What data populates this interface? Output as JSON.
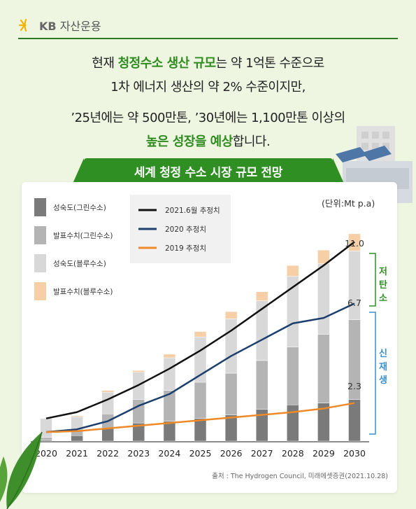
{
  "brand": {
    "logo_name": "KB",
    "logo_sub": "자산운용"
  },
  "headline": {
    "line1": {
      "pre": "현재 ",
      "hl": "청정수소 생산 규모",
      "post": "는 약 1억톤 수준으로"
    },
    "line2": "1차 에너지 생산의 약 2% 수준이지만,",
    "line3": "’25년에는 약 500만톤, ’30년에는 1,100만톤 이상의",
    "line4": {
      "hl": "높은 성장을 예상",
      "post": "합니다."
    }
  },
  "chart_title": "세계 청정 수소 시장 규모 전망",
  "unit_label": "(단위:Mt p.a)",
  "source": "출처 : The Hydrogen Council, 미래에셋증권(2021.10.28)",
  "side_labels": {
    "low_carbon": "저탄소",
    "renewable": "신재생"
  },
  "colors": {
    "mature_green": "#7a7a7a",
    "announced_green": "#b4b4b4",
    "mature_blue": "#d8d8d8",
    "announced_blue": "#f6cfa6",
    "line_2021": "#111111",
    "line_2020": "#1d3f6e",
    "line_2019": "#f08a28",
    "bracket": "#2f8f23",
    "bracket_blue": "#3a8fd0"
  },
  "chart_data": {
    "type": "bar",
    "categories": [
      "2020",
      "2021",
      "2022",
      "2023",
      "2024",
      "2025",
      "2026",
      "2027",
      "2028",
      "2029",
      "2030"
    ],
    "ylim": [
      0,
      11.6
    ],
    "series": [
      {
        "name": "성숙도(그린수소)",
        "kind": "stack",
        "color": "#7a7a7a",
        "values": [
          0.05,
          0.3,
          0.7,
          1.0,
          1.1,
          1.25,
          1.45,
          1.75,
          2.0,
          2.1,
          2.3
        ]
      },
      {
        "name": "발표수치(그린수소)",
        "kind": "stack",
        "color": "#b4b4b4",
        "values": [
          0.15,
          0.3,
          0.8,
          1.3,
          1.7,
          2.0,
          2.3,
          2.7,
          3.2,
          3.8,
          4.4
        ]
      },
      {
        "name": "성숙도(블루수소)",
        "kind": "stack",
        "color": "#d8d8d8",
        "values": [
          1.05,
          0.75,
          1.2,
          1.5,
          1.8,
          2.5,
          3.0,
          3.3,
          3.9,
          3.9,
          3.8
        ]
      },
      {
        "name": "발표수치(블루수소)",
        "kind": "stack",
        "color": "#f6cfa6",
        "values": [
          0.0,
          0.05,
          0.1,
          0.1,
          0.2,
          0.3,
          0.4,
          0.5,
          0.6,
          0.75,
          0.95
        ]
      },
      {
        "name": "2021.6월 추정치",
        "kind": "line",
        "color": "#111111",
        "values": [
          1.25,
          1.6,
          2.3,
          3.1,
          4.0,
          5.0,
          6.1,
          7.3,
          8.5,
          9.7,
          11.0
        ]
      },
      {
        "name": "2020 추정치",
        "kind": "line",
        "color": "#1d3f6e",
        "values": [
          0.5,
          0.65,
          1.1,
          1.95,
          2.6,
          3.65,
          4.7,
          5.6,
          6.5,
          6.8,
          7.6
        ]
      },
      {
        "name": "2019 추정치",
        "kind": "line",
        "color": "#f08a28",
        "values": [
          0.5,
          0.55,
          0.7,
          0.85,
          1.0,
          1.15,
          1.3,
          1.45,
          1.6,
          1.8,
          2.1
        ]
      }
    ],
    "annotations": [
      {
        "category": "2030",
        "text": "11.0"
      },
      {
        "category": "2030",
        "text": "6.7"
      },
      {
        "category": "2030",
        "text": "2.3"
      }
    ]
  }
}
